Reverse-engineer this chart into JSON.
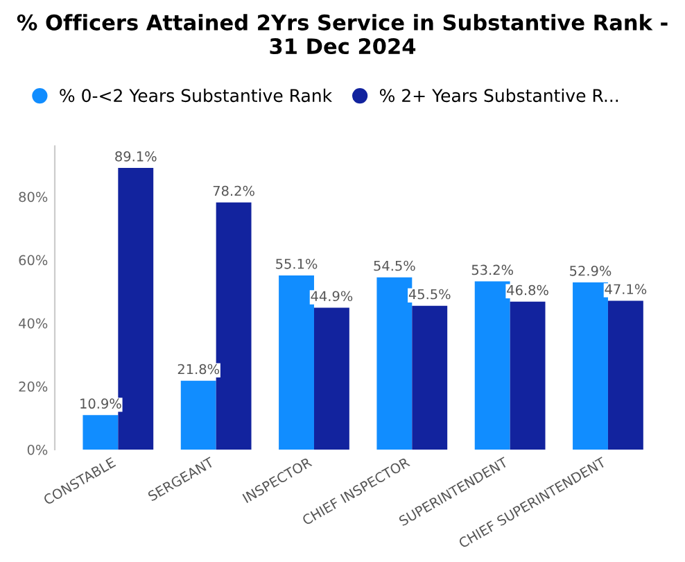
{
  "chart_data": {
    "type": "bar",
    "title": "% Officers Attained 2Yrs Service in Substantive Rank - 31 Dec 2024",
    "categories": [
      "CONSTABLE",
      "SERGEANT",
      "INSPECTOR",
      "CHIEF INSPECTOR",
      "SUPERINTENDENT",
      "CHIEF SUPERINTENDENT"
    ],
    "series": [
      {
        "name": "% 0-<2 Years Substantive Rank",
        "color": "#118dff",
        "values": [
          10.9,
          21.8,
          55.1,
          54.5,
          53.2,
          52.9
        ],
        "value_labels": [
          "10.9%",
          "21.8%",
          "55.1%",
          "54.5%",
          "53.2%",
          "52.9%"
        ]
      },
      {
        "name": "% 2+ Years Substantive R...",
        "color": "#12239e",
        "values": [
          89.1,
          78.2,
          44.9,
          45.5,
          46.8,
          47.1
        ],
        "value_labels": [
          "89.1%",
          "78.2%",
          "44.9%",
          "45.5%",
          "46.8%",
          "47.1%"
        ]
      }
    ],
    "ylim": [
      0,
      96
    ],
    "yticks": [
      {
        "value": 0,
        "label": "0%"
      },
      {
        "value": 20,
        "label": "20%"
      },
      {
        "value": 40,
        "label": "40%"
      },
      {
        "value": 60,
        "label": "60%"
      },
      {
        "value": 80,
        "label": "80%"
      }
    ],
    "legend": "top left",
    "grid": false
  }
}
